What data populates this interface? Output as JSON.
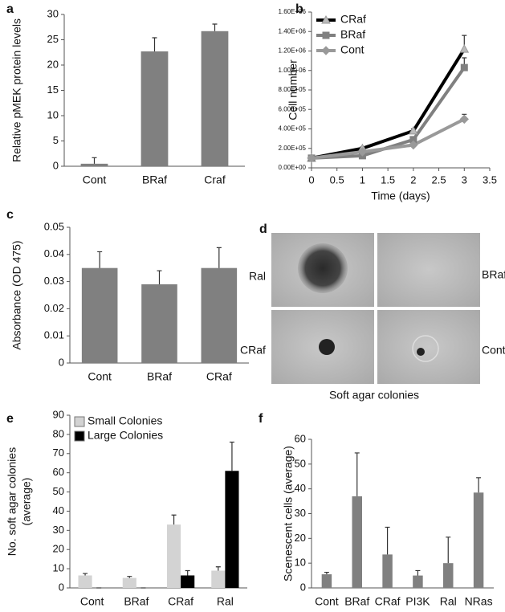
{
  "chart_data": [
    {
      "type": "bar",
      "label": "a",
      "ylabel": "Relative pMEK protein levels",
      "categories": [
        "Cont",
        "BRaf",
        "Craf"
      ],
      "values": [
        0.5,
        22.7,
        26.7
      ],
      "errors": [
        1.2,
        2.7,
        1.4
      ],
      "color": "#808080",
      "ylim": [
        0,
        30
      ],
      "yticks": [
        0,
        5,
        10,
        15,
        20,
        25,
        30
      ]
    },
    {
      "type": "line",
      "label": "b",
      "ylabel": "Cell number",
      "xlabel": "Time (days)",
      "legend": "upper left",
      "x": [
        0,
        1,
        2,
        3
      ],
      "xlim": [
        0,
        3.5
      ],
      "xticks": [
        0,
        0.5,
        1,
        1.5,
        2,
        2.5,
        3,
        3.5
      ],
      "ylim": [
        0,
        1600000
      ],
      "yticks": [
        {
          "value": 0,
          "label": "0.00E+00"
        },
        {
          "value": 200000,
          "label": "2.00E+05"
        },
        {
          "value": 400000,
          "label": "4.00E+05"
        },
        {
          "value": 600000,
          "label": "6.00E+05"
        },
        {
          "value": 800000,
          "label": "8.00E+05"
        },
        {
          "value": 1000000,
          "label": "1.00E+06"
        },
        {
          "value": 1200000,
          "label": "1.20E+06"
        },
        {
          "value": 1400000,
          "label": "1.40E+06"
        },
        {
          "value": 1600000,
          "label": "1.60E+06"
        }
      ],
      "series": [
        {
          "name": "CRaf",
          "color": "#000000",
          "values": [
            100000,
            200000,
            380000,
            1220000
          ],
          "errors": [
            10000,
            15000,
            20000,
            140000
          ]
        },
        {
          "name": "BRaf",
          "color": "#808080",
          "values": [
            100000,
            125000,
            290000,
            1030000
          ],
          "errors": [
            10000,
            15000,
            20000,
            100000
          ]
        },
        {
          "name": "Cont",
          "color": "#999999",
          "values": [
            100000,
            165000,
            235000,
            500000
          ],
          "errors": [
            10000,
            15000,
            15000,
            50000
          ]
        }
      ]
    },
    {
      "type": "bar",
      "label": "c",
      "ylabel": "Absorbance (OD 475)",
      "categories": [
        "Cont",
        "BRaf",
        "CRaf"
      ],
      "values": [
        0.035,
        0.029,
        0.035
      ],
      "errors": [
        0.006,
        0.005,
        0.0075
      ],
      "color": "#808080",
      "ylim": [
        0,
        0.05
      ],
      "yticks": [
        0,
        0.01,
        0.02,
        0.03,
        0.04,
        0.05
      ]
    },
    {
      "type": "image-grid",
      "label": "d",
      "labels": [
        "Ral",
        "BRaf",
        "CRaf",
        "Cont"
      ],
      "caption": "Soft agar colonies"
    },
    {
      "type": "bar",
      "label": "e",
      "ylabel": [
        "No. soft agar colonies",
        "(average)"
      ],
      "legend": "upper left",
      "categories": [
        "Cont",
        "BRaf",
        "CRaf",
        "Ral"
      ],
      "ylim": [
        0,
        90
      ],
      "yticks": [
        0,
        10,
        20,
        30,
        40,
        50,
        60,
        70,
        80,
        90
      ],
      "series": [
        {
          "name": "Small Colonies",
          "color": "#d3d3d3",
          "values": [
            6.5,
            5.2,
            33,
            9
          ],
          "errors": [
            1,
            0.8,
            5,
            2
          ]
        },
        {
          "name": "Large Colonies",
          "color": "#000000",
          "values": [
            0,
            0,
            6.5,
            61
          ],
          "errors": [
            0,
            0,
            2.5,
            15
          ]
        }
      ]
    },
    {
      "type": "bar",
      "label": "f",
      "ylabel": "Scenescent cells (average)",
      "categories": [
        "Cont",
        "BRaf",
        "CRaf",
        "PI3K",
        "Ral",
        "NRas"
      ],
      "values": [
        5.5,
        37,
        13.5,
        5,
        10,
        38.5
      ],
      "errors": [
        0.8,
        17.5,
        11,
        2,
        10.5,
        6
      ],
      "color": "#808080",
      "ylim": [
        0,
        60
      ],
      "yticks": [
        0,
        10,
        20,
        30,
        40,
        50,
        60
      ]
    }
  ]
}
